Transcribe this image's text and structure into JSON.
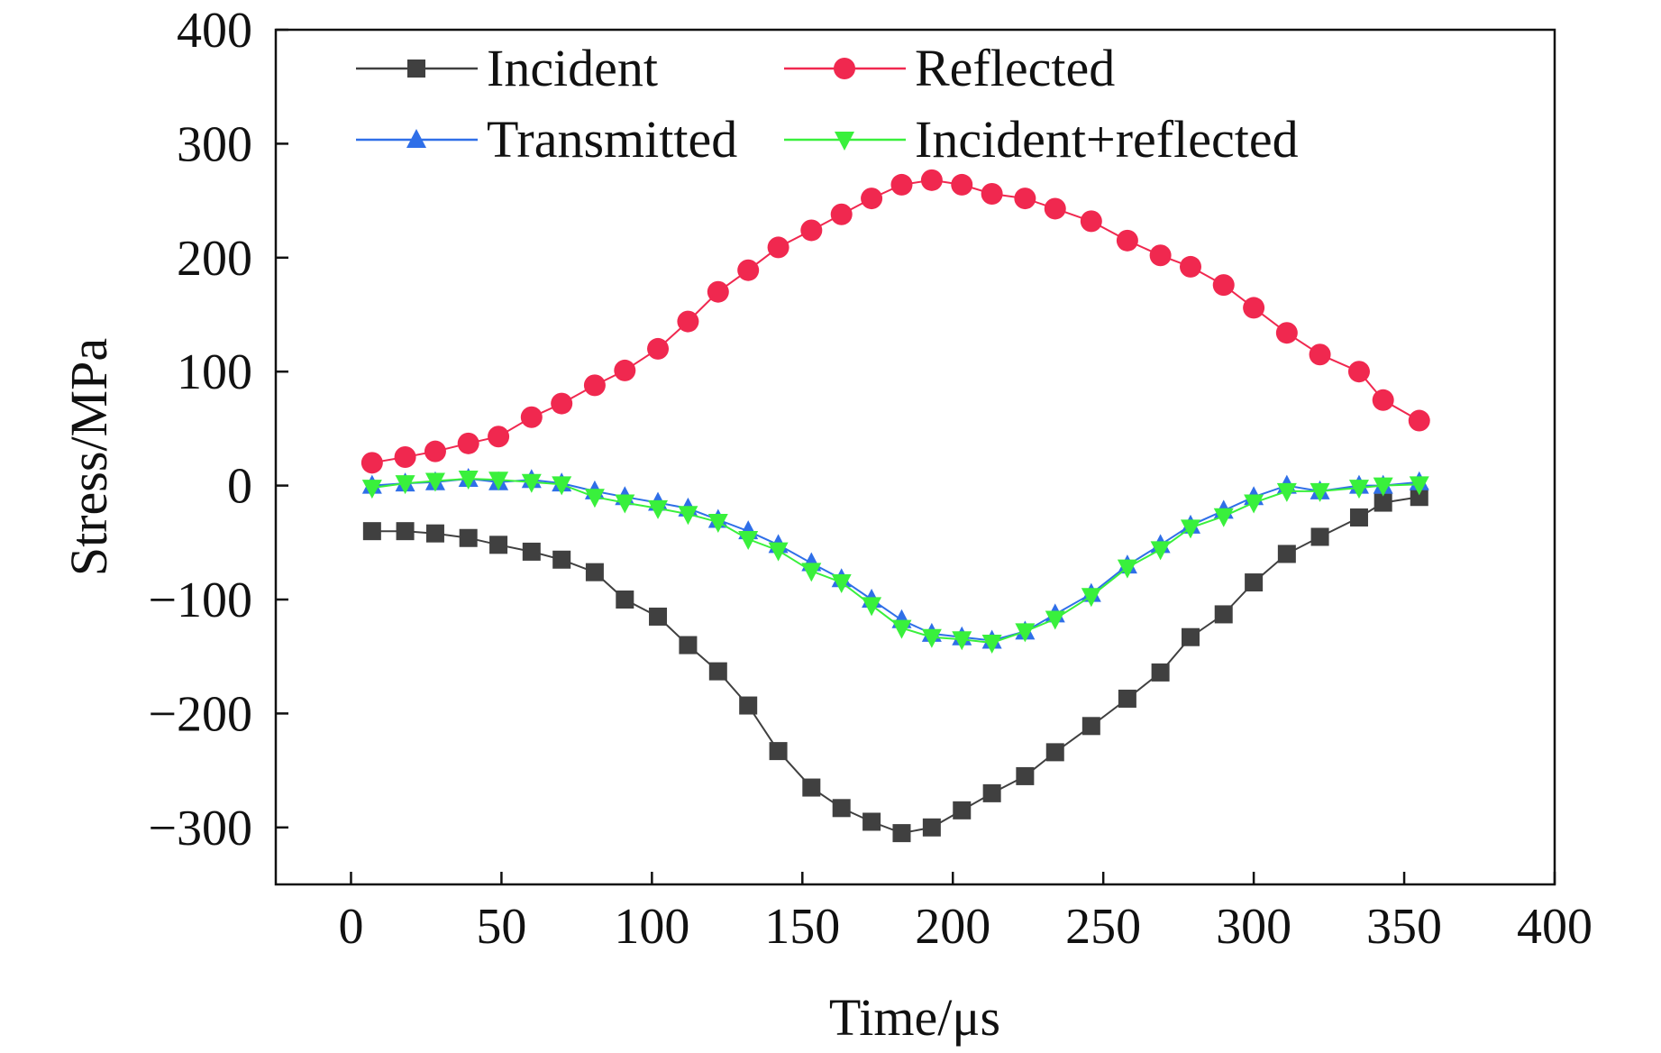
{
  "chart_data": {
    "type": "line",
    "xlabel": "Time/μs",
    "ylabel": "Stress/MPa",
    "xlim": [
      -25,
      400
    ],
    "ylim": [
      -350,
      400
    ],
    "xticks": [
      0,
      50,
      100,
      150,
      200,
      250,
      300,
      350,
      400
    ],
    "yticks": [
      -300,
      -200,
      -100,
      0,
      100,
      200,
      300,
      400
    ],
    "xtick_labels": [
      "0",
      "50",
      "100",
      "150",
      "200",
      "250",
      "300",
      "350",
      "400"
    ],
    "ytick_labels": [
      "−300",
      "−200",
      "−100",
      "0",
      "100",
      "200",
      "300",
      "400"
    ],
    "grid": false,
    "legend_position": "top",
    "series": [
      {
        "name": "Incident",
        "color": "#404040",
        "marker": "square",
        "points": [
          [
            7,
            -40
          ],
          [
            18,
            -40
          ],
          [
            28,
            -42
          ],
          [
            39,
            -46
          ],
          [
            49,
            -52
          ],
          [
            60,
            -58
          ],
          [
            70,
            -65
          ],
          [
            81,
            -76
          ],
          [
            91,
            -100
          ],
          [
            102,
            -115
          ],
          [
            112,
            -140
          ],
          [
            122,
            -163
          ],
          [
            132,
            -193
          ],
          [
            142,
            -233
          ],
          [
            153,
            -265
          ],
          [
            163,
            -283
          ],
          [
            173,
            -295
          ],
          [
            183,
            -305
          ],
          [
            193,
            -300
          ],
          [
            203,
            -285
          ],
          [
            213,
            -270
          ],
          [
            224,
            -255
          ],
          [
            234,
            -234
          ],
          [
            246,
            -211
          ],
          [
            258,
            -187
          ],
          [
            269,
            -164
          ],
          [
            279,
            -133
          ],
          [
            290,
            -113
          ],
          [
            300,
            -85
          ],
          [
            311,
            -60
          ],
          [
            322,
            -45
          ],
          [
            335,
            -28
          ],
          [
            343,
            -15
          ],
          [
            355,
            -10
          ]
        ]
      },
      {
        "name": "Reflected",
        "color": "#f0284f",
        "marker": "circle",
        "points": [
          [
            7,
            20
          ],
          [
            18,
            25
          ],
          [
            28,
            30
          ],
          [
            39,
            37
          ],
          [
            49,
            43
          ],
          [
            60,
            60
          ],
          [
            70,
            72
          ],
          [
            81,
            88
          ],
          [
            91,
            101
          ],
          [
            102,
            120
          ],
          [
            112,
            144
          ],
          [
            122,
            170
          ],
          [
            132,
            189
          ],
          [
            142,
            209
          ],
          [
            153,
            224
          ],
          [
            163,
            238
          ],
          [
            173,
            252
          ],
          [
            183,
            264
          ],
          [
            193,
            268
          ],
          [
            203,
            264
          ],
          [
            213,
            256
          ],
          [
            224,
            252
          ],
          [
            234,
            243
          ],
          [
            246,
            232
          ],
          [
            258,
            215
          ],
          [
            269,
            202
          ],
          [
            279,
            192
          ],
          [
            290,
            176
          ],
          [
            300,
            156
          ],
          [
            311,
            134
          ],
          [
            322,
            115
          ],
          [
            335,
            100
          ],
          [
            343,
            75
          ],
          [
            355,
            57
          ]
        ]
      },
      {
        "name": "Transmitted",
        "color": "#2f6fe8",
        "marker": "triangle-up",
        "points": [
          [
            7,
            0
          ],
          [
            18,
            2
          ],
          [
            28,
            3
          ],
          [
            39,
            6
          ],
          [
            49,
            3
          ],
          [
            60,
            5
          ],
          [
            70,
            2
          ],
          [
            81,
            -5
          ],
          [
            91,
            -10
          ],
          [
            102,
            -15
          ],
          [
            112,
            -20
          ],
          [
            122,
            -30
          ],
          [
            132,
            -40
          ],
          [
            142,
            -52
          ],
          [
            153,
            -68
          ],
          [
            163,
            -82
          ],
          [
            173,
            -100
          ],
          [
            183,
            -118
          ],
          [
            193,
            -130
          ],
          [
            203,
            -133
          ],
          [
            213,
            -136
          ],
          [
            224,
            -128
          ],
          [
            234,
            -113
          ],
          [
            246,
            -95
          ],
          [
            258,
            -70
          ],
          [
            269,
            -52
          ],
          [
            279,
            -35
          ],
          [
            290,
            -22
          ],
          [
            300,
            -10
          ],
          [
            311,
            0
          ],
          [
            322,
            -5
          ],
          [
            335,
            0
          ],
          [
            343,
            0
          ],
          [
            355,
            3
          ]
        ]
      },
      {
        "name": "Incident+reflected",
        "color": "#39f03c",
        "marker": "triangle-down",
        "points": [
          [
            7,
            -2
          ],
          [
            18,
            2
          ],
          [
            28,
            4
          ],
          [
            39,
            6
          ],
          [
            49,
            5
          ],
          [
            60,
            3
          ],
          [
            70,
            1
          ],
          [
            81,
            -10
          ],
          [
            91,
            -15
          ],
          [
            102,
            -20
          ],
          [
            112,
            -25
          ],
          [
            122,
            -32
          ],
          [
            132,
            -47
          ],
          [
            142,
            -57
          ],
          [
            153,
            -75
          ],
          [
            163,
            -85
          ],
          [
            173,
            -105
          ],
          [
            183,
            -125
          ],
          [
            193,
            -133
          ],
          [
            203,
            -135
          ],
          [
            213,
            -138
          ],
          [
            224,
            -128
          ],
          [
            234,
            -117
          ],
          [
            246,
            -97
          ],
          [
            258,
            -72
          ],
          [
            269,
            -56
          ],
          [
            279,
            -37
          ],
          [
            290,
            -27
          ],
          [
            300,
            -15
          ],
          [
            311,
            -5
          ],
          [
            322,
            -5
          ],
          [
            335,
            -2
          ],
          [
            343,
            0
          ],
          [
            355,
            1
          ]
        ]
      }
    ]
  }
}
